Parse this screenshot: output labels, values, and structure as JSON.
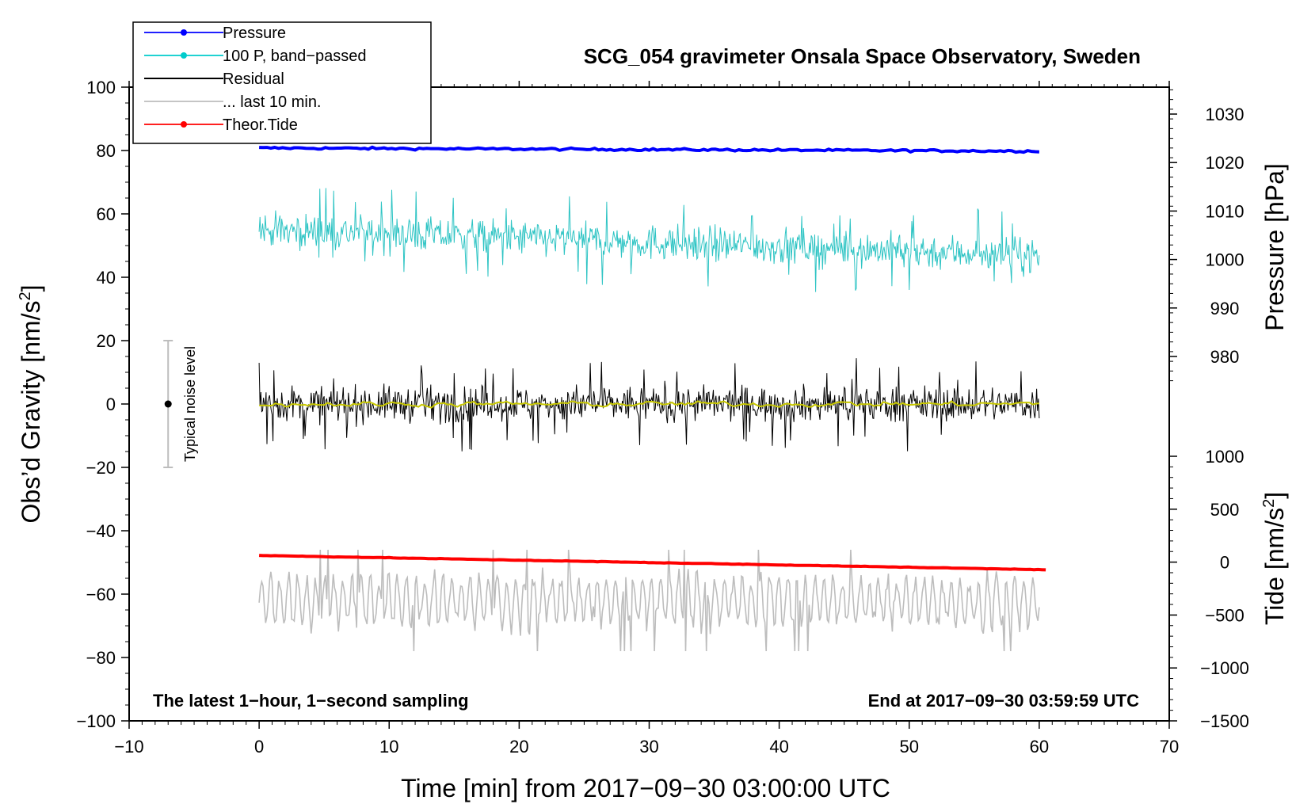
{
  "chart_data": {
    "type": "line",
    "title": "SCG_054 gravimeter Onsala Space Observatory, Sweden",
    "xlabel": "Time [min] from 2017−09−30 03:00:00 UTC",
    "ylabel_left": "Obs’d Gravity [nm/s",
    "ylabel_left_sup": "2",
    "ylabel_left_end": "]",
    "ylabel_right_pressure": "Pressure [hPa]",
    "ylabel_right_tide": "Tide [nm/s",
    "ylabel_right_tide_sup": "2",
    "ylabel_right_tide_end": "]",
    "xlim": [
      -10,
      70
    ],
    "ylim_left": [
      -100,
      100
    ],
    "xticks": [
      -10,
      0,
      10,
      20,
      30,
      40,
      50,
      60,
      70
    ],
    "xtick_labels": [
      "−10",
      "0",
      "10",
      "20",
      "30",
      "40",
      "50",
      "60",
      "70"
    ],
    "yticks_left": [
      100,
      80,
      60,
      40,
      20,
      0,
      -20,
      -40,
      -60,
      -80,
      -100
    ],
    "ytick_labels_left": [
      "100",
      "80",
      "60",
      "40",
      "20",
      "0",
      "−20",
      "−40",
      "−60",
      "−80",
      "−100"
    ],
    "pressure_axis": {
      "ticks": [
        1030,
        1020,
        1010,
        1000,
        990,
        980
      ],
      "labels": [
        "1030",
        "1020",
        "1010",
        "1000",
        "990",
        "980"
      ],
      "gravity_equivalent": [
        [
          1030,
          91.5
        ],
        [
          980,
          15
        ]
      ]
    },
    "tide_axis": {
      "ticks": [
        1000,
        500,
        0,
        -500,
        -1000,
        -1500
      ],
      "labels": [
        "1000",
        "500",
        "0",
        "−500",
        "−1000",
        "−1500"
      ],
      "gravity_equivalent": [
        [
          1000,
          -16.5
        ],
        [
          -1500,
          -100
        ]
      ]
    },
    "legend": {
      "position": "top-left",
      "entries": [
        {
          "label": "Pressure",
          "color": "#0000ff",
          "marker": true
        },
        {
          "label": "100 P, band−passed",
          "color": "#00cccc",
          "marker": true
        },
        {
          "label": "Residual",
          "color": "#000000",
          "marker": false
        },
        {
          "label": "... last 10 min.",
          "color": "#bdbdbd",
          "marker": false
        },
        {
          "label": "Theor.Tide",
          "color": "#ff0000",
          "marker": true
        }
      ]
    },
    "series": [
      {
        "name": "Pressure",
        "color": "#0000ff",
        "kind": "trend",
        "x_range": [
          0,
          60
        ],
        "y_start": 80.8,
        "y_end": 79.8,
        "noise": 0.25
      },
      {
        "name": "100 P, band−passed",
        "color": "#2ec4c4",
        "kind": "noisy",
        "x_range": [
          0,
          60
        ],
        "y_start": 55,
        "y_end": 47,
        "amplitude": 5,
        "spike_amplitude": 14
      },
      {
        "name": "Residual",
        "color": "#000000",
        "kind": "noisy",
        "x_range": [
          0,
          60
        ],
        "y_start": 0,
        "y_end": 0,
        "amplitude": 5,
        "spike_amplitude": 15
      },
      {
        "name": "Residual (smoothed)",
        "color": "#c8c800",
        "kind": "smooth",
        "x_range": [
          0,
          60
        ],
        "y_start": 0,
        "y_end": 0,
        "amplitude": 0.8
      },
      {
        "name": "... last 10 min.",
        "color": "#bdbdbd",
        "kind": "oscillation",
        "x_range": [
          0,
          60
        ],
        "y_center": -62,
        "amplitude": 8,
        "spike_amplitude": 16
      },
      {
        "name": "Theor.Tide",
        "color": "#ff0000",
        "kind": "trend",
        "x_range": [
          0,
          60.5
        ],
        "y_start": -47.8,
        "y_end": -52.3,
        "noise": 0.05
      }
    ],
    "noise_level": {
      "label": "Typical noise level",
      "x": -7,
      "y_low": -20,
      "y_high": 20,
      "center": 0
    },
    "annotations": {
      "bottom_left": "The latest 1−hour, 1−second sampling",
      "bottom_right": "End at 2017−09−30 03:59:59 UTC"
    }
  }
}
